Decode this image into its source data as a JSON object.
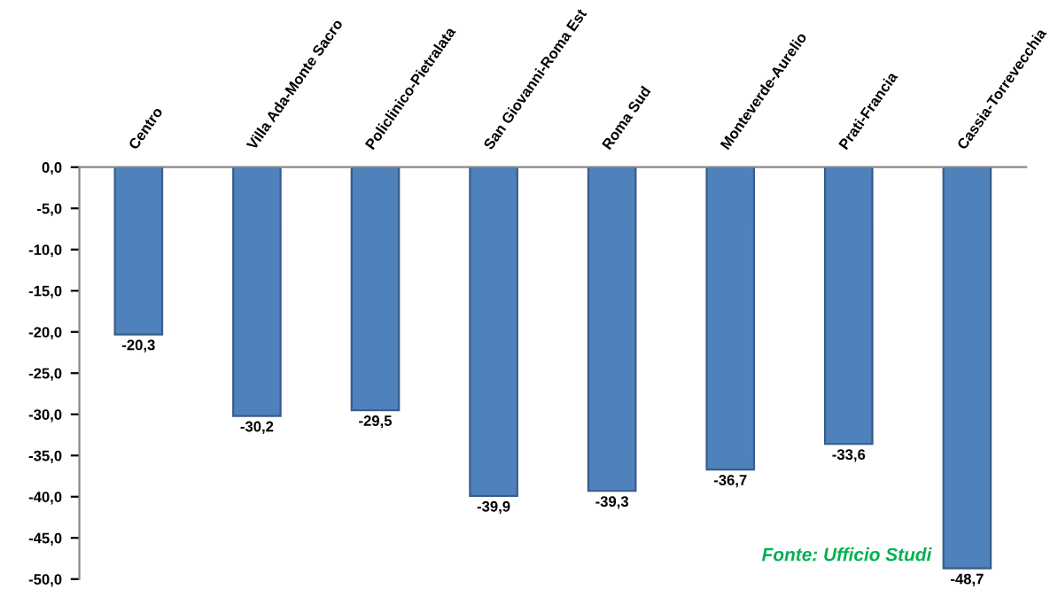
{
  "chart_data": {
    "type": "bar",
    "categories": [
      "Centro",
      "Villa Ada-Monte Sacro",
      "Policlinico-Pietralata",
      "San Giovanni-Roma Est",
      "Roma Sud",
      "Monteverde-Aurelio",
      "Prati-Francia",
      "Cassia-Torrevecchia"
    ],
    "values": [
      -20.3,
      -30.2,
      -29.5,
      -39.9,
      -39.3,
      -36.7,
      -33.6,
      -48.7
    ],
    "value_labels": [
      "-20,3",
      "-30,2",
      "-29,5",
      "-39,9",
      "-39,3",
      "-36,7",
      "-33,6",
      "-48,7"
    ],
    "color": "#4f81bd",
    "ylim": [
      -50,
      0
    ],
    "yticks": [
      {
        "value": 0,
        "label": "0,0"
      },
      {
        "value": -5,
        "label": "-5,0"
      },
      {
        "value": -10,
        "label": "-10,0"
      },
      {
        "value": -15,
        "label": "-15,0"
      },
      {
        "value": -20,
        "label": "-20,0"
      },
      {
        "value": -25,
        "label": "-25,0"
      },
      {
        "value": -30,
        "label": "-30,0"
      },
      {
        "value": -35,
        "label": "-35,0"
      },
      {
        "value": -40,
        "label": "-40,0"
      },
      {
        "value": -45,
        "label": "-45,0"
      },
      {
        "value": -50,
        "label": "-50,0"
      }
    ],
    "annotations": [
      "Fonte: Ufficio Studi"
    ],
    "grid": false
  }
}
